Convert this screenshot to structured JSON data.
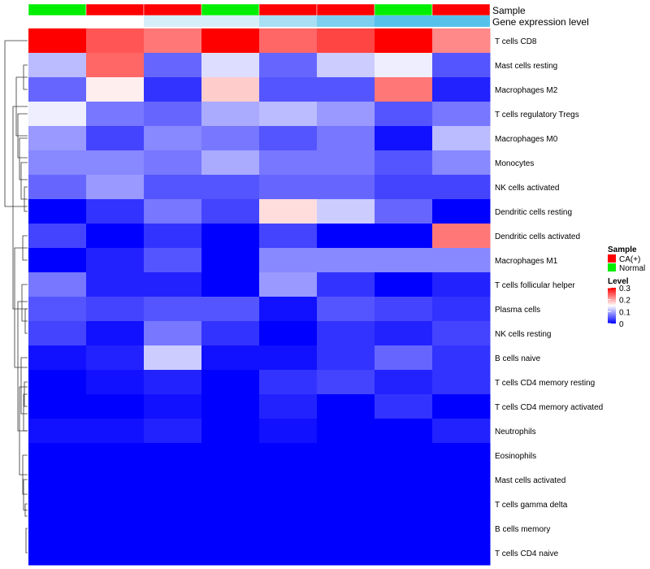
{
  "chart_data": {
    "type": "heatmap",
    "annotation_track_titles": {
      "sample": "Sample",
      "expression": "Gene expression level"
    },
    "sample_groups": [
      "Normal",
      "CA(+)",
      "CA(+)",
      "Normal",
      "CA(+)",
      "CA(+)",
      "Normal",
      "CA(+)"
    ],
    "expression_track_colors": [
      "#ffffff",
      "#ffffff",
      "#d6eef8",
      "#d6eef8",
      "#a8dff5",
      "#7ccfef",
      "#56c2ec",
      "#56c2ec"
    ],
    "rows": [
      "T cells CD8",
      "Mast cells resting",
      "Macrophages M2",
      "T cells regulatory  Tregs",
      "Macrophages M0",
      "Monocytes",
      "NK cells activated",
      "Dendritic cells resting",
      "Dendritic cells activated",
      "Macrophages M1",
      "T cells follicular helper",
      "Plasma cells",
      "NK cells resting",
      "B cells naive",
      "T cells CD4 memory resting",
      "T cells CD4 memory activated",
      "Neutrophils",
      "Eosinophils",
      "Mast cells activated",
      "T cells gamma delta",
      "B cells memory",
      "T cells CD4 naive"
    ],
    "values": [
      [
        0.3,
        0.25,
        0.23,
        0.3,
        0.24,
        0.26,
        0.3,
        0.22
      ],
      [
        0.11,
        0.24,
        0.06,
        0.13,
        0.06,
        0.12,
        0.14,
        0.05
      ],
      [
        0.06,
        0.16,
        0.03,
        0.18,
        0.05,
        0.05,
        0.23,
        0.02
      ],
      [
        0.14,
        0.07,
        0.06,
        0.1,
        0.11,
        0.09,
        0.05,
        0.07
      ],
      [
        0.09,
        0.04,
        0.08,
        0.07,
        0.05,
        0.07,
        0.01,
        0.11
      ],
      [
        0.08,
        0.08,
        0.07,
        0.1,
        0.07,
        0.07,
        0.05,
        0.08
      ],
      [
        0.06,
        0.09,
        0.05,
        0.05,
        0.06,
        0.06,
        0.04,
        0.04
      ],
      [
        0.0,
        0.03,
        0.07,
        0.04,
        0.17,
        0.12,
        0.06,
        0.0
      ],
      [
        0.04,
        0.0,
        0.03,
        0.0,
        0.04,
        0.0,
        0.0,
        0.23
      ],
      [
        0.0,
        0.02,
        0.05,
        0.0,
        0.08,
        0.08,
        0.08,
        0.08
      ],
      [
        0.07,
        0.02,
        0.02,
        0.0,
        0.09,
        0.03,
        0.0,
        0.02
      ],
      [
        0.05,
        0.04,
        0.05,
        0.05,
        0.01,
        0.05,
        0.04,
        0.03
      ],
      [
        0.04,
        0.01,
        0.07,
        0.03,
        0.0,
        0.03,
        0.02,
        0.04
      ],
      [
        0.01,
        0.02,
        0.12,
        0.01,
        0.01,
        0.03,
        0.06,
        0.03
      ],
      [
        0.0,
        0.01,
        0.02,
        0.0,
        0.03,
        0.04,
        0.02,
        0.03
      ],
      [
        0.0,
        0.0,
        0.01,
        0.0,
        0.02,
        0.0,
        0.03,
        0.0
      ],
      [
        0.01,
        0.01,
        0.02,
        0.0,
        0.01,
        0.0,
        0.0,
        0.02
      ],
      [
        0.0,
        0.0,
        0.0,
        0.0,
        0.0,
        0.0,
        0.0,
        0.0
      ],
      [
        0.0,
        0.0,
        0.0,
        0.0,
        0.0,
        0.0,
        0.0,
        0.0
      ],
      [
        0.0,
        0.0,
        0.0,
        0.0,
        0.0,
        0.0,
        0.0,
        0.0
      ],
      [
        0.0,
        0.0,
        0.0,
        0.0,
        0.0,
        0.0,
        0.0,
        0.0
      ],
      [
        0.0,
        0.0,
        0.0,
        0.0,
        0.0,
        0.0,
        0.0,
        0.0
      ]
    ],
    "color_scale": {
      "low": "#0000ff",
      "mid": "#ffffff",
      "high": "#ff0000",
      "min": 0,
      "mid_value": 0.15,
      "max": 0.3
    },
    "legend": {
      "sample_title": "Sample",
      "sample_items": [
        {
          "label": "CA(+)",
          "color": "#ff0000"
        },
        {
          "label": "Normal",
          "color": "#00ee00"
        }
      ],
      "level_title": "Level",
      "level_ticks": [
        {
          "label": "0.3",
          "value": 0.3
        },
        {
          "label": "0.2",
          "value": 0.2
        },
        {
          "label": "0.1",
          "value": 0.1
        },
        {
          "label": "0",
          "value": 0
        }
      ]
    },
    "group_colors": {
      "Normal": "#00ee00",
      "CA(+)": "#ff0000"
    },
    "row_dendrogram": true
  }
}
